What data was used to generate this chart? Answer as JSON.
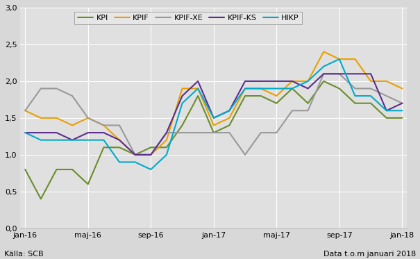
{
  "series": {
    "KPI": [
      0.8,
      0.4,
      0.8,
      0.8,
      0.6,
      1.1,
      1.1,
      1.0,
      1.1,
      1.1,
      1.4,
      1.8,
      1.3,
      1.4,
      1.8,
      1.8,
      1.7,
      1.9,
      1.7,
      2.0,
      1.9,
      1.7,
      1.7,
      1.5,
      1.5
    ],
    "KPIF": [
      1.6,
      1.5,
      1.5,
      1.4,
      1.5,
      1.4,
      1.2,
      1.0,
      1.0,
      1.2,
      1.9,
      1.9,
      1.4,
      1.5,
      1.9,
      1.9,
      1.8,
      2.0,
      2.0,
      2.4,
      2.3,
      2.3,
      2.0,
      2.0,
      1.9
    ],
    "KPIF-XE": [
      1.6,
      1.9,
      1.9,
      1.8,
      1.5,
      1.4,
      1.4,
      1.0,
      1.0,
      1.3,
      1.3,
      1.3,
      1.3,
      1.3,
      1.0,
      1.3,
      1.3,
      1.6,
      1.6,
      2.1,
      2.1,
      1.9,
      1.9,
      1.8,
      1.7
    ],
    "KPIF-KS": [
      1.3,
      1.3,
      1.3,
      1.2,
      1.3,
      1.3,
      1.2,
      1.0,
      1.0,
      1.3,
      1.8,
      2.0,
      1.5,
      1.6,
      2.0,
      2.0,
      2.0,
      2.0,
      1.9,
      2.1,
      2.1,
      2.1,
      2.1,
      1.6,
      1.7
    ],
    "HIKP": [
      1.3,
      1.2,
      1.2,
      1.2,
      1.2,
      1.2,
      0.9,
      0.9,
      0.8,
      1.0,
      1.7,
      1.9,
      1.5,
      1.6,
      1.9,
      1.9,
      1.9,
      1.9,
      2.0,
      2.2,
      2.3,
      1.8,
      1.8,
      1.6,
      1.6
    ]
  },
  "colors": {
    "KPI": "#6b8c2a",
    "KPIF": "#e8a000",
    "KPIF-XE": "#999999",
    "KPIF-KS": "#5b2d8e",
    "HIKP": "#00aacc"
  },
  "tick_positions": [
    0,
    4,
    8,
    12,
    16,
    20,
    24
  ],
  "tick_labels": [
    "jan-16",
    "maj-16",
    "sep-16",
    "jan-17",
    "maj-17",
    "sep-17",
    "jan-18"
  ],
  "ylim": [
    0.0,
    3.0
  ],
  "yticks": [
    0.0,
    0.5,
    1.0,
    1.5,
    2.0,
    2.5,
    3.0
  ],
  "source_left": "Källa: SCB",
  "source_right": "Data t.o.m januari 2018",
  "bg_color": "#d8d8d8",
  "plot_bg_color": "#e0e0e0",
  "grid_color": "#ffffff",
  "linewidth": 1.5
}
